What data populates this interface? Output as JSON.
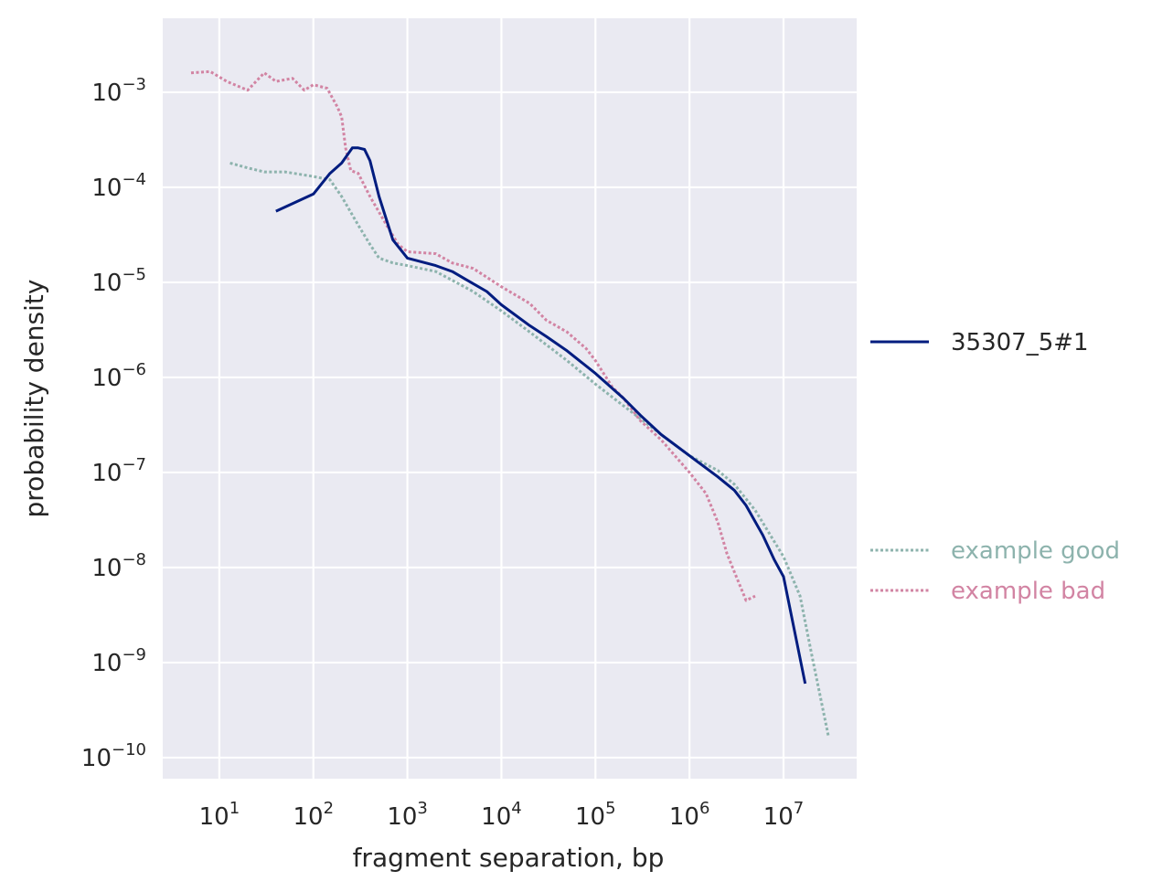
{
  "chart_data": {
    "type": "line",
    "xlabel": "fragment separation, bp",
    "ylabel": "probability density",
    "x_scale": "log",
    "y_scale": "log",
    "xlim": [
      2.5,
      60000000
    ],
    "ylim": [
      6e-11,
      0.006
    ],
    "x_ticks": [
      {
        "value": 10,
        "base": "10",
        "exp": "1"
      },
      {
        "value": 100,
        "base": "10",
        "exp": "2"
      },
      {
        "value": 1000,
        "base": "10",
        "exp": "3"
      },
      {
        "value": 10000,
        "base": "10",
        "exp": "4"
      },
      {
        "value": 100000,
        "base": "10",
        "exp": "5"
      },
      {
        "value": 1000000,
        "base": "10",
        "exp": "6"
      },
      {
        "value": 10000000,
        "base": "10",
        "exp": "7"
      }
    ],
    "y_ticks": [
      {
        "value": 1e-10,
        "base": "10",
        "exp": "−10"
      },
      {
        "value": 1e-09,
        "base": "10",
        "exp": "−9"
      },
      {
        "value": 1e-08,
        "base": "10",
        "exp": "−8"
      },
      {
        "value": 1e-07,
        "base": "10",
        "exp": "−7"
      },
      {
        "value": 1e-06,
        "base": "10",
        "exp": "−6"
      },
      {
        "value": 1e-05,
        "base": "10",
        "exp": "−5"
      },
      {
        "value": 0.0001,
        "base": "10",
        "exp": "−4"
      },
      {
        "value": 0.001,
        "base": "10",
        "exp": "−3"
      }
    ],
    "grid": true,
    "legend_placement": "right",
    "series": [
      {
        "name": "35307_5#1",
        "color": "#001c7f",
        "style": "solid",
        "points": [
          [
            40,
            5.6e-05
          ],
          [
            100,
            8.5e-05
          ],
          [
            150,
            0.00014
          ],
          [
            200,
            0.00018
          ],
          [
            260,
            0.00026
          ],
          [
            300,
            0.00026
          ],
          [
            350,
            0.00025
          ],
          [
            400,
            0.00019
          ],
          [
            500,
            8e-05
          ],
          [
            700,
            2.8e-05
          ],
          [
            1000,
            1.8e-05
          ],
          [
            2000,
            1.5e-05
          ],
          [
            3000,
            1.3e-05
          ],
          [
            4000,
            1.1e-05
          ],
          [
            7000,
            8e-06
          ],
          [
            10000,
            5.8e-06
          ],
          [
            20000,
            3.5e-06
          ],
          [
            30000,
            2.7e-06
          ],
          [
            50000,
            1.9e-06
          ],
          [
            100000,
            1.1e-06
          ],
          [
            200000,
            6e-07
          ],
          [
            300000,
            4e-07
          ],
          [
            500000,
            2.5e-07
          ],
          [
            1000000,
            1.5e-07
          ],
          [
            2000000,
            9e-08
          ],
          [
            3000000,
            6.5e-08
          ],
          [
            4000000,
            4.5e-08
          ],
          [
            6000000,
            2.2e-08
          ],
          [
            8000000,
            1.2e-08
          ],
          [
            10000000,
            8e-09
          ],
          [
            17000000,
            6e-10
          ]
        ]
      },
      {
        "name": "example good",
        "color": "#8db3ad",
        "style": "dotted",
        "points": [
          [
            13,
            0.00018
          ],
          [
            20,
            0.00016
          ],
          [
            30,
            0.000145
          ],
          [
            50,
            0.000145
          ],
          [
            100,
            0.00013
          ],
          [
            150,
            0.00012
          ],
          [
            200,
            8e-05
          ],
          [
            300,
            4e-05
          ],
          [
            400,
            2.5e-05
          ],
          [
            500,
            1.8e-05
          ],
          [
            700,
            1.6e-05
          ],
          [
            1000,
            1.5e-05
          ],
          [
            2000,
            1.3e-05
          ],
          [
            3000,
            1.05e-05
          ],
          [
            5000,
            8e-06
          ],
          [
            10000,
            5e-06
          ],
          [
            20000,
            3e-06
          ],
          [
            50000,
            1.5e-06
          ],
          [
            100000,
            8.5e-07
          ],
          [
            200000,
            5e-07
          ],
          [
            500000,
            2.5e-07
          ],
          [
            1000000,
            1.5e-07
          ],
          [
            2000000,
            1.05e-07
          ],
          [
            3000000,
            7.5e-08
          ],
          [
            5000000,
            4e-08
          ],
          [
            10000000,
            1.3e-08
          ],
          [
            15000000,
            5e-09
          ],
          [
            20000000,
            1.2e-09
          ],
          [
            30000000,
            1.7e-10
          ]
        ]
      },
      {
        "name": "example bad",
        "color": "#d284a3",
        "style": "dotted",
        "points": [
          [
            5,
            0.0016
          ],
          [
            8,
            0.00165
          ],
          [
            12,
            0.0013
          ],
          [
            20,
            0.00105
          ],
          [
            30,
            0.0016
          ],
          [
            40,
            0.0013
          ],
          [
            60,
            0.0014
          ],
          [
            80,
            0.00105
          ],
          [
            100,
            0.0012
          ],
          [
            140,
            0.0011
          ],
          [
            180,
            0.0007
          ],
          [
            200,
            0.00055
          ],
          [
            220,
            0.00026
          ],
          [
            250,
            0.00015
          ],
          [
            300,
            0.00014
          ],
          [
            400,
            8e-05
          ],
          [
            600,
            4e-05
          ],
          [
            800,
            2.5e-05
          ],
          [
            1000,
            2.1e-05
          ],
          [
            2000,
            2e-05
          ],
          [
            3000,
            1.6e-05
          ],
          [
            5000,
            1.4e-05
          ],
          [
            10000,
            9e-06
          ],
          [
            20000,
            6e-06
          ],
          [
            30000,
            4e-06
          ],
          [
            50000,
            3e-06
          ],
          [
            80000,
            2e-06
          ],
          [
            100000,
            1.5e-06
          ],
          [
            150000,
            8e-07
          ],
          [
            200000,
            6e-07
          ],
          [
            300000,
            3.5e-07
          ],
          [
            500000,
            2.2e-07
          ],
          [
            700000,
            1.5e-07
          ],
          [
            1000000,
            1e-07
          ],
          [
            1500000,
            6e-08
          ],
          [
            2000000,
            3e-08
          ],
          [
            2500000,
            1.4e-08
          ],
          [
            3000000,
            9e-09
          ],
          [
            4000000,
            4.5e-09
          ],
          [
            5000000,
            5e-09
          ]
        ]
      }
    ]
  }
}
